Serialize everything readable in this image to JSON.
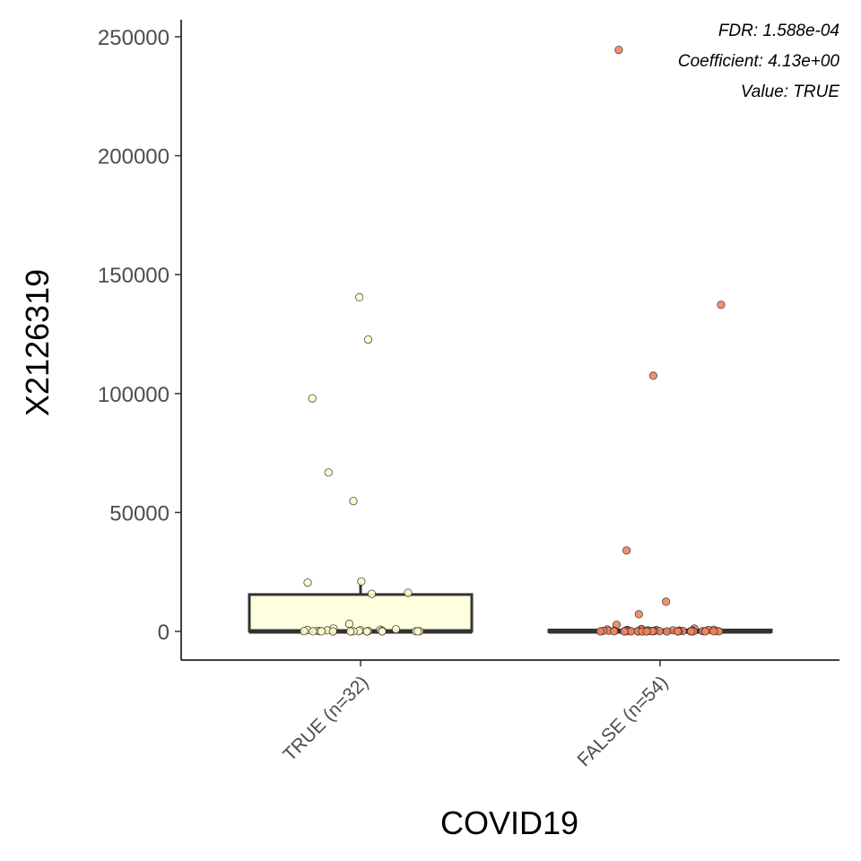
{
  "chart_data": {
    "type": "box",
    "xlabel": "COVID19",
    "ylabel": "X2126319",
    "ylim": [
      -12000,
      257000
    ],
    "yticks": [
      0,
      50000,
      100000,
      150000,
      200000,
      250000
    ],
    "grid": false,
    "annotations": [
      "FDR: 1.588e-04",
      "Coefficient: 4.13e+00",
      "Value: TRUE"
    ],
    "categories": [
      "TRUE (n=32)",
      "FALSE (n=54)"
    ],
    "groups": [
      {
        "category": "TRUE (n=32)",
        "fill": "#ffffe0",
        "point_color": "#ffffcc",
        "box": {
          "min": 0,
          "q1": 0,
          "median": 0,
          "q3": 15500,
          "whisker_high": 21000
        },
        "points": [
          140500,
          122700,
          98000,
          66800,
          54800,
          21000,
          20500,
          16200,
          15800,
          3200,
          1200,
          900,
          700,
          600,
          500,
          400,
          300,
          250,
          200,
          150,
          120,
          100,
          80,
          60,
          50,
          40,
          30,
          20,
          10,
          5,
          2,
          0
        ]
      },
      {
        "category": "FALSE (n=54)",
        "fill": "#fdbb84",
        "point_color": "#f4845c",
        "box": {
          "min": 0,
          "q1": 0,
          "median": 0,
          "q3": 600,
          "whisker_high": 1200
        },
        "points": [
          244500,
          137300,
          107500,
          34000,
          12500,
          7200,
          2800,
          1200,
          1000,
          900,
          800,
          700,
          650,
          600,
          550,
          500,
          450,
          400,
          380,
          350,
          320,
          300,
          280,
          260,
          240,
          220,
          200,
          180,
          160,
          150,
          140,
          130,
          120,
          110,
          100,
          90,
          80,
          70,
          60,
          50,
          45,
          40,
          35,
          30,
          25,
          20,
          15,
          12,
          10,
          8,
          5,
          3,
          1,
          0
        ]
      }
    ]
  }
}
